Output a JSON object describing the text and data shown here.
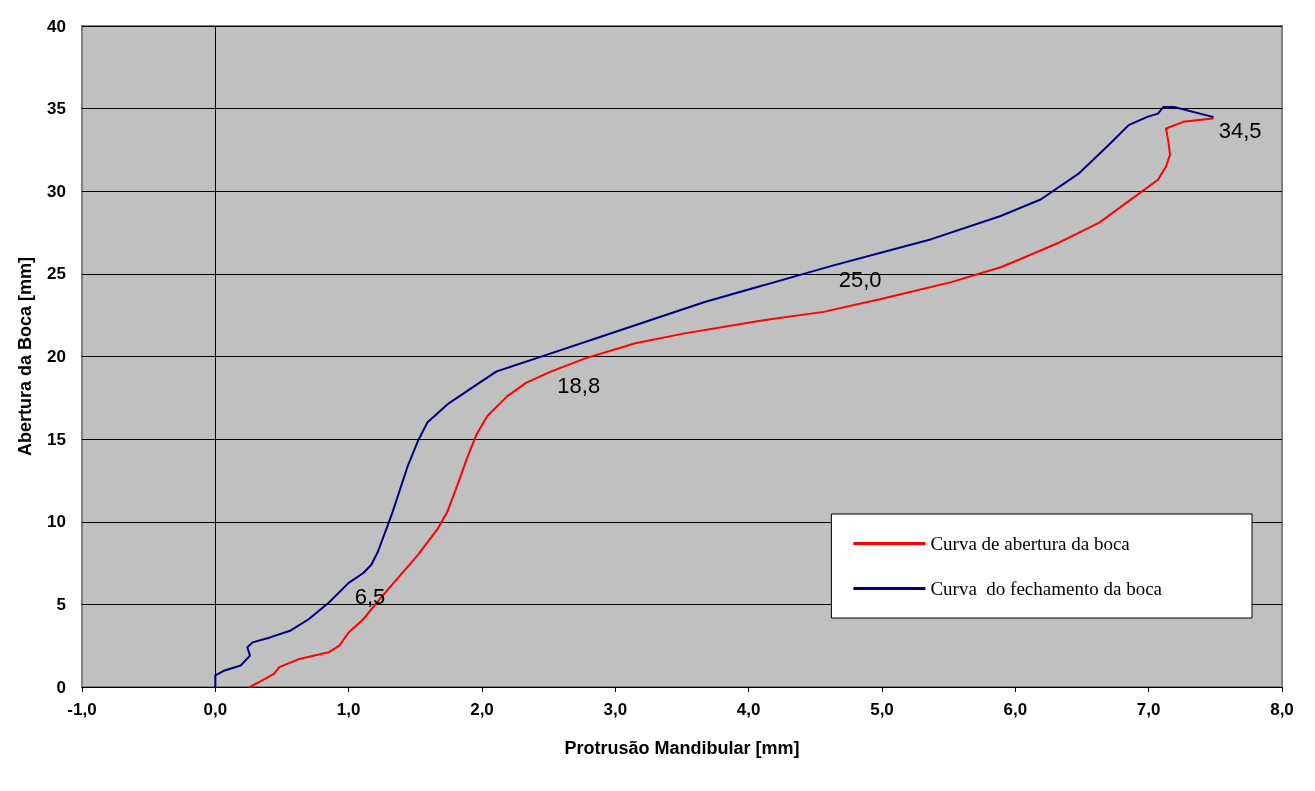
{
  "chart_data": {
    "type": "line",
    "xlabel": "Protrusão Mandibular [mm]",
    "ylabel": "Abertura da Boca [mm]",
    "xlim": [
      -1,
      8
    ],
    "xticks": [
      {
        "value": -1,
        "label": "-1,0"
      },
      {
        "value": 0,
        "label": "0,0"
      },
      {
        "value": 1,
        "label": "1,0"
      },
      {
        "value": 2,
        "label": "2,0"
      },
      {
        "value": 3,
        "label": "3,0"
      },
      {
        "value": 4,
        "label": "4,0"
      },
      {
        "value": 5,
        "label": "5,0"
      },
      {
        "value": 6,
        "label": "6,0"
      },
      {
        "value": 7,
        "label": "7,0"
      },
      {
        "value": 8,
        "label": "8,0"
      }
    ],
    "ylim": [
      0,
      40
    ],
    "yticks": [
      0,
      5,
      10,
      15,
      20,
      25,
      30,
      35,
      40
    ],
    "grid": "y",
    "legend": "bottom right",
    "marker": "none",
    "line_style": "solid",
    "series": [
      {
        "name": "Curva de abertura da boca",
        "color": "#ff0000",
        "x": [
          0.26,
          0.44,
          0.48,
          0.63,
          0.85,
          0.93,
          1.0,
          1.11,
          1.22,
          1.37,
          1.52,
          1.67,
          1.74,
          1.81,
          1.89,
          1.96,
          2.04,
          2.19,
          2.33,
          2.52,
          2.78,
          3.15,
          3.52,
          4.11,
          4.56,
          5.0,
          5.52,
          5.89,
          6.04,
          6.33,
          6.63,
          6.85,
          7.07,
          7.13,
          7.16,
          7.15,
          7.13,
          7.26,
          7.48
        ],
        "values": [
          0,
          0.8,
          1.2,
          1.7,
          2.1,
          2.5,
          3.3,
          4.1,
          5.2,
          6.6,
          8.0,
          9.6,
          10.6,
          12.1,
          13.9,
          15.3,
          16.4,
          17.6,
          18.4,
          19.1,
          19.9,
          20.8,
          21.4,
          22.2,
          22.7,
          23.5,
          24.5,
          25.4,
          25.9,
          26.9,
          28.1,
          29.4,
          30.7,
          31.5,
          32.2,
          32.9,
          33.8,
          34.2,
          34.4
        ]
      },
      {
        "name": "Curva  do fechamento da boca",
        "color": "#000080",
        "x": [
          0,
          0,
          0.07,
          0.19,
          0.26,
          0.24,
          0.28,
          0.41,
          0.56,
          0.7,
          0.85,
          1.0,
          1.11,
          1.17,
          1.22,
          1.33,
          1.44,
          1.52,
          1.59,
          1.74,
          1.96,
          2.11,
          2.41,
          2.93,
          3.67,
          4.63,
          5.37,
          5.89,
          6.19,
          6.48,
          6.7,
          6.85,
          6.99,
          7.07,
          7.11,
          7.19,
          7.48
        ],
        "values": [
          0,
          0.7,
          1.0,
          1.3,
          1.9,
          2.4,
          2.7,
          3.0,
          3.4,
          4.1,
          5.1,
          6.3,
          6.9,
          7.4,
          8.2,
          10.6,
          13.3,
          14.9,
          16.0,
          17.1,
          18.3,
          19.1,
          19.9,
          21.3,
          23.3,
          25.5,
          27.1,
          28.5,
          29.5,
          31.1,
          32.8,
          34.0,
          34.5,
          34.7,
          35.1,
          35.1,
          34.5
        ]
      }
    ],
    "ref_lines": [
      {
        "axis": "x",
        "value": 0,
        "color": "#000000"
      }
    ],
    "annotations": [
      {
        "text": "6,5",
        "x": 1.0,
        "y": 6.3
      },
      {
        "text": "18,8",
        "x": 2.52,
        "y": 19.1
      },
      {
        "text": "25,0",
        "x": 4.63,
        "y": 25.5
      },
      {
        "text": "34,5",
        "x": 7.48,
        "y": 34.5
      }
    ]
  }
}
